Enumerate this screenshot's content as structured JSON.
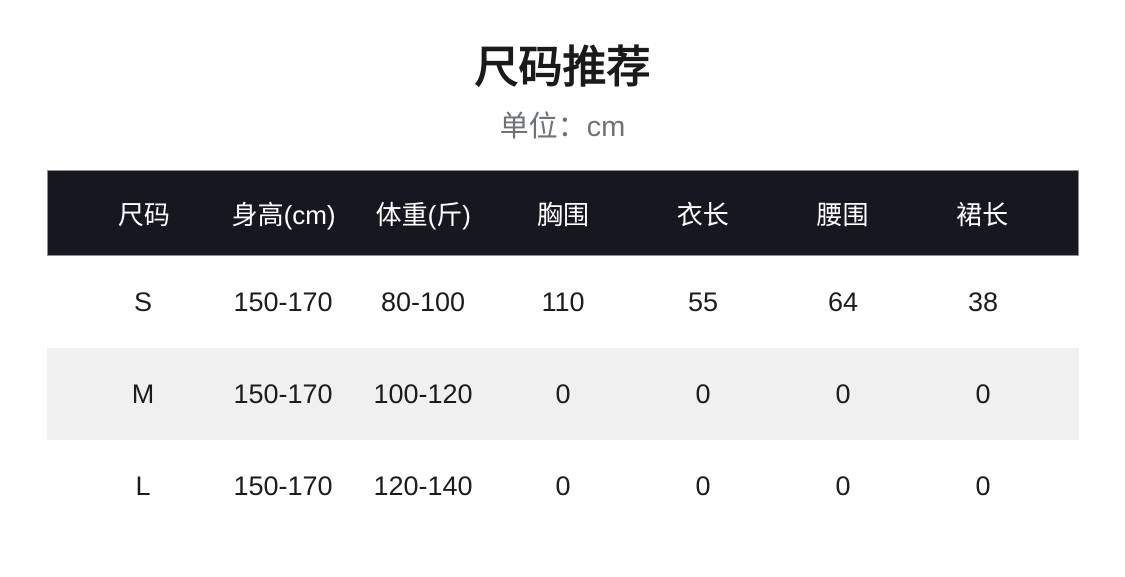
{
  "chart_data": {
    "type": "table",
    "title": "尺码推荐",
    "subtitle": "单位：cm",
    "columns": [
      "尺码",
      "身高(cm)",
      "体重(斤)",
      "胸围",
      "衣长",
      "腰围",
      "裙长"
    ],
    "rows": [
      [
        "S",
        "150-170",
        "80-100",
        "110",
        "55",
        "64",
        "38"
      ],
      [
        "M",
        "150-170",
        "100-120",
        "0",
        "0",
        "0",
        "0"
      ],
      [
        "L",
        "150-170",
        "120-140",
        "0",
        "0",
        "0",
        "0"
      ]
    ]
  },
  "colors": {
    "header_bg": "#17171f",
    "header_text": "#ffffff",
    "header_border": "#8e8e94",
    "row_stripe_bg": "#f0f0f1",
    "body_text": "#1c1c1c",
    "title_text": "#1a1a1a",
    "subtitle_text": "#6e7277",
    "page_bg": "#ffffff"
  }
}
